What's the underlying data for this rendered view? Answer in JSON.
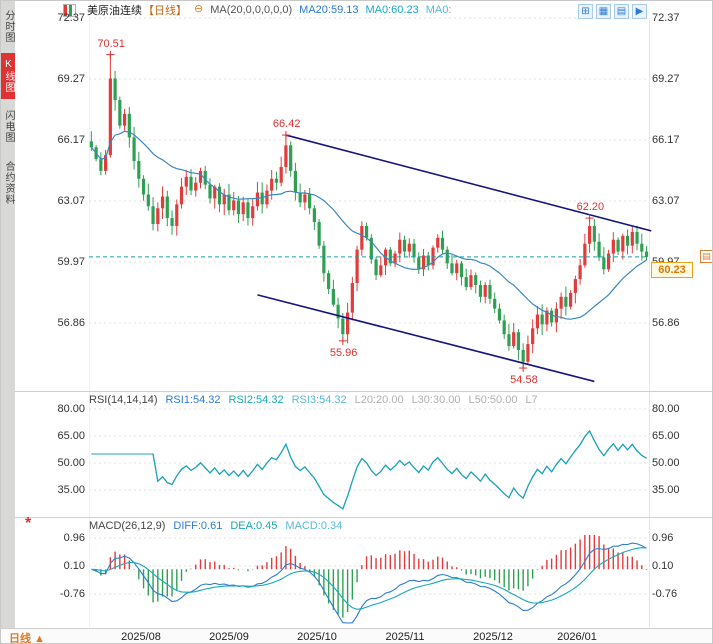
{
  "header": {
    "title": "美原油连续",
    "period_tag": "【日线】",
    "ma_params": "MA(20,0,0,0,0,0)",
    "ma20": "MA20:59.13",
    "ma0_a": "MA0:60.23",
    "ma0_b": "MA0:"
  },
  "icons": {
    "timeframe": "⊖",
    "grid": "⊞",
    "columns": "▦",
    "panes": "▤",
    "play": "▶",
    "scale": "▤",
    "macd_panel": "*",
    "arrow_up": "▲"
  },
  "sidebar": {
    "tabs": [
      {
        "label": "分时图",
        "active": false
      },
      {
        "label": "K线图",
        "active": true
      },
      {
        "label": "闪电图",
        "active": false
      },
      {
        "label": "合约资料",
        "active": false
      }
    ]
  },
  "rsi_header": {
    "params": "RSI(14,14,14)",
    "rsi1": "RSI1:54.32",
    "rsi2": "RSI2:54.32",
    "rsi3": "RSI3:54.32",
    "l20": "L20:20.00",
    "l30": "L30:30.00",
    "l50": "L50:50.00",
    "l7": "L7"
  },
  "macd_header": {
    "params": "MACD(26,12,9)",
    "diff": "DIFF:0.61",
    "dea": "DEA:0.45",
    "macd": "MACD:0.34"
  },
  "axes": {
    "main": [
      "72.37",
      "69.27",
      "66.17",
      "63.07",
      "59.97",
      "56.86"
    ],
    "rsi": [
      "80.00",
      "65.00",
      "50.00",
      "35.00"
    ],
    "macd": [
      "0.96",
      "0.10",
      "-0.76"
    ],
    "x": [
      "2025/08",
      "2025/09",
      "2025/10",
      "2025/11",
      "2025/12",
      "2026/01"
    ]
  },
  "bottom_bar": {
    "period": "日线"
  },
  "colors": {
    "up": "#e23b3b",
    "down": "#2fa052",
    "ma": "#3a87c0",
    "channel": "#15157e",
    "last_price_line": "#18a0a0",
    "annotation": "#e03030",
    "rsi1": "#2b7bd4",
    "rsi2": "#18a8b8",
    "rsi3": "#58b8d8",
    "diff": "#2b7bd4",
    "dea": "#18a8b8"
  },
  "chart_data": {
    "type": "candlestick",
    "symbol": "美原油连续",
    "period": "日线",
    "last_price": 60.23,
    "last_price_label": "60.23",
    "closes": [
      65.8,
      65.2,
      64.6,
      65.4,
      69.3,
      68.2,
      66.9,
      67.5,
      66.3,
      65.1,
      64.2,
      63.4,
      62.8,
      61.9,
      62.7,
      63.3,
      62.2,
      61.8,
      62.9,
      63.8,
      64.3,
      63.6,
      64.0,
      64.6,
      63.9,
      63.2,
      63.8,
      62.9,
      63.4,
      62.6,
      63.1,
      62.4,
      63.0,
      62.2,
      62.8,
      63.5,
      62.9,
      63.6,
      64.2,
      64.0,
      64.8,
      65.9,
      64.6,
      63.5,
      63.0,
      63.4,
      62.7,
      62.0,
      60.8,
      59.4,
      58.6,
      57.8,
      57.1,
      56.3,
      57.4,
      58.9,
      60.6,
      61.8,
      61.2,
      60.1,
      59.3,
      59.8,
      60.6,
      59.9,
      60.4,
      61.1,
      60.5,
      60.9,
      60.2,
      59.6,
      60.3,
      59.8,
      60.7,
      61.2,
      60.6,
      59.9,
      59.4,
      59.9,
      59.2,
      58.7,
      59.3,
      58.8,
      58.2,
      58.8,
      58.1,
      57.6,
      57.0,
      56.3,
      55.7,
      56.4,
      55.5,
      54.9,
      55.8,
      56.6,
      57.3,
      56.8,
      57.5,
      56.9,
      57.6,
      58.2,
      57.7,
      58.4,
      59.1,
      59.8,
      60.9,
      61.8,
      61.0,
      60.2,
      59.6,
      60.4,
      61.1,
      60.5,
      61.3,
      60.8,
      61.5,
      60.9,
      60.5,
      60.23
    ],
    "wick_overrides": [
      {
        "idx": 4,
        "high": 70.51
      },
      {
        "idx": 41,
        "high": 66.42
      },
      {
        "idx": 53,
        "low": 55.96
      },
      {
        "idx": 91,
        "low": 54.58
      },
      {
        "idx": 105,
        "high": 62.2
      }
    ],
    "annotations": [
      {
        "text": "70.51",
        "idx": 4,
        "price": 70.51,
        "pos": "above"
      },
      {
        "text": "66.42",
        "idx": 41,
        "price": 66.42,
        "pos": "above"
      },
      {
        "text": "62.20",
        "idx": 105,
        "price": 62.2,
        "pos": "above"
      },
      {
        "text": "55.96",
        "idx": 53,
        "price": 55.96,
        "pos": "below"
      },
      {
        "text": "54.58",
        "idx": 91,
        "price": 54.58,
        "pos": "below"
      }
    ],
    "channel": {
      "upper": [
        [
          41,
          66.42
        ],
        [
          118,
          61.55
        ]
      ],
      "lower": [
        [
          35,
          58.3
        ],
        [
          106,
          53.9
        ]
      ]
    },
    "price_axis": [
      72.37,
      69.27,
      66.17,
      63.07,
      59.97,
      56.86
    ],
    "rsi_axis": [
      80,
      65,
      50,
      35
    ],
    "macd_axis": [
      0.96,
      0.1,
      -0.76
    ],
    "month_tick_indices": [
      11,
      30,
      48,
      67,
      86,
      103
    ]
  }
}
